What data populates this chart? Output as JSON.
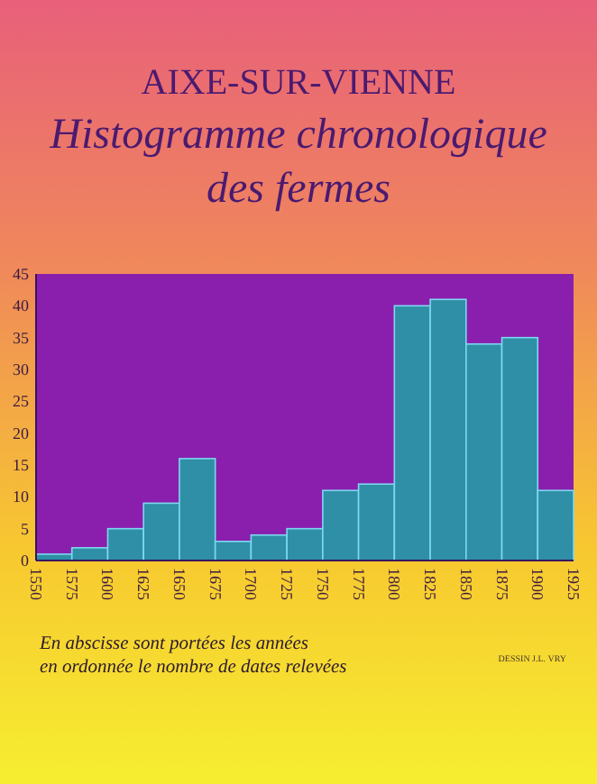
{
  "chart_data": {
    "type": "histogram",
    "title": "AIXE-SUR-VIENNE",
    "subtitle": "Histogramme chronologique des fermes",
    "bins": [
      1550,
      1575,
      1600,
      1625,
      1650,
      1675,
      1700,
      1725,
      1750,
      1775,
      1800,
      1825,
      1850,
      1875,
      1900,
      1925
    ],
    "values": [
      1,
      2,
      5,
      9,
      16,
      3,
      4,
      5,
      11,
      12,
      40,
      41,
      34,
      35,
      11
    ],
    "color": "#2e8fa6",
    "xlim": [
      1550,
      1925
    ],
    "xticks": [
      1550,
      1575,
      1600,
      1625,
      1650,
      1675,
      1700,
      1725,
      1750,
      1775,
      1800,
      1825,
      1850,
      1875,
      1900,
      1925
    ],
    "ylim": [
      0,
      45
    ],
    "yticks": [
      0,
      5,
      10,
      15,
      20,
      25,
      30,
      35,
      40,
      45
    ],
    "annotations": [
      "En abscisse sont portées les années\nen ordonnée le nombre de dates relevées",
      "DESSIN J.L. VRY"
    ]
  }
}
